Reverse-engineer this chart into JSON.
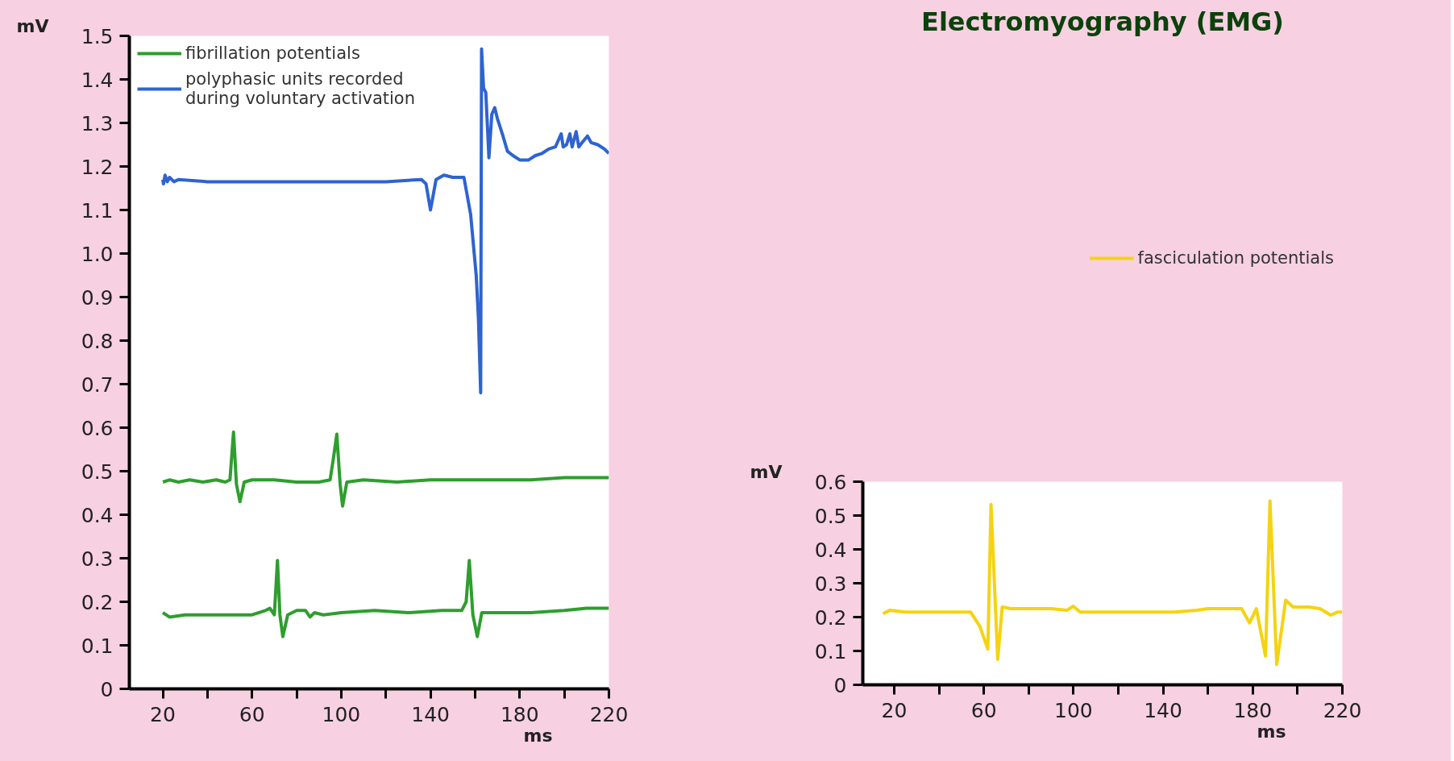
{
  "chart_data": [
    {
      "type": "line",
      "xlabel": "ms",
      "ylabel": "mV",
      "xlim": [
        5,
        220
      ],
      "ylim": [
        0,
        1.5
      ],
      "xticks": [
        20,
        {
          "value": 40,
          "label": null
        },
        60,
        {
          "value": 80,
          "label": null
        },
        100,
        {
          "value": 120,
          "label": null
        },
        140,
        {
          "value": 160,
          "label": null
        },
        180,
        {
          "value": 200,
          "label": null
        },
        220
      ],
      "yticks": [
        0,
        0.1,
        0.2,
        0.3,
        0.4,
        0.5,
        0.6,
        0.7,
        0.8,
        0.9,
        {
          "value": 1,
          "label": "1.0"
        },
        1.1,
        1.2,
        1.3,
        1.4,
        1.5
      ],
      "grid": false,
      "legend": "top left",
      "marker": "none",
      "line_style": "solid",
      "series": [
        {
          "name": "fibrillation potentials",
          "color": "#2e9e2e",
          "x": [
            20,
            23,
            27,
            32,
            38,
            44,
            48,
            50.1,
            51.7,
            53,
            54.6,
            56.5,
            60,
            70,
            80,
            90,
            95,
            96.5,
            98,
            99.5,
            100.6,
            102.5,
            110,
            125,
            140,
            155,
            170,
            185,
            200,
            210,
            220
          ],
          "values": [
            0.475,
            0.48,
            0.475,
            0.48,
            0.475,
            0.48,
            0.475,
            0.48,
            0.59,
            0.47,
            0.43,
            0.475,
            0.48,
            0.48,
            0.475,
            0.475,
            0.48,
            0.53,
            0.585,
            0.47,
            0.42,
            0.475,
            0.48,
            0.475,
            0.48,
            0.48,
            0.48,
            0.48,
            0.485,
            0.485,
            0.485
          ]
        },
        {
          "color": "#2e9e2e",
          "x": [
            20,
            23,
            30,
            40,
            50,
            60,
            66,
            68,
            70,
            71.4,
            72.5,
            73.8,
            76,
            80,
            84,
            86,
            88,
            92,
            100,
            115,
            130,
            145,
            154,
            156,
            157.4,
            159,
            161,
            163,
            170,
            185,
            200,
            210,
            220
          ],
          "values": [
            0.175,
            0.165,
            0.17,
            0.17,
            0.17,
            0.17,
            0.18,
            0.185,
            0.17,
            0.295,
            0.17,
            0.12,
            0.17,
            0.18,
            0.18,
            0.165,
            0.175,
            0.17,
            0.175,
            0.18,
            0.175,
            0.18,
            0.18,
            0.2,
            0.295,
            0.17,
            0.12,
            0.175,
            0.175,
            0.175,
            0.18,
            0.185,
            0.185
          ]
        },
        {
          "name": "polyphasic units recorded during voluntary activation",
          "color": "#2e63d1",
          "x": [
            20,
            20.3,
            21,
            22,
            23,
            25,
            27,
            40,
            60,
            80,
            100,
            120,
            136,
            138,
            140,
            142.5,
            146,
            150,
            155,
            158,
            160.5,
            161.5,
            162.5,
            162.9,
            163.8,
            164.8,
            166.2,
            167.5,
            168.8,
            170,
            172.5,
            174.5,
            177,
            180,
            184,
            187,
            190,
            193,
            196,
            198.6,
            199.5,
            201,
            202.5,
            203.5,
            205.3,
            206.5,
            208,
            210.4,
            212,
            215,
            218,
            220
          ],
          "values": [
            1.17,
            1.16,
            1.18,
            1.165,
            1.175,
            1.165,
            1.17,
            1.165,
            1.165,
            1.165,
            1.165,
            1.165,
            1.17,
            1.16,
            1.1,
            1.17,
            1.18,
            1.175,
            1.175,
            1.09,
            0.95,
            0.85,
            0.68,
            1.47,
            1.38,
            1.37,
            1.22,
            1.32,
            1.335,
            1.31,
            1.27,
            1.235,
            1.225,
            1.215,
            1.215,
            1.225,
            1.23,
            1.24,
            1.245,
            1.275,
            1.245,
            1.25,
            1.275,
            1.245,
            1.28,
            1.245,
            1.255,
            1.27,
            1.255,
            1.25,
            1.24,
            1.23
          ]
        }
      ]
    },
    {
      "type": "line",
      "title": "Electromyography (EMG)",
      "xlabel": "ms",
      "ylabel": "mV",
      "xlim": [
        6,
        220
      ],
      "ylim": [
        0,
        0.6
      ],
      "xticks": [
        20,
        {
          "value": 40,
          "label": null
        },
        60,
        {
          "value": 80,
          "label": null
        },
        100,
        {
          "value": 120,
          "label": null
        },
        140,
        {
          "value": 160,
          "label": null
        },
        180,
        {
          "value": 200,
          "label": null
        },
        220
      ],
      "yticks": [
        0,
        0.1,
        0.2,
        0.3,
        0.4,
        0.5,
        0.6
      ],
      "grid": false,
      "legend": "top",
      "marker": "none",
      "line_style": "solid",
      "series": [
        {
          "name": "fasciculation potentials",
          "color": "#f5d311",
          "x": [
            15,
            18,
            25,
            35,
            45,
            54.1,
            58.2,
            61.8,
            63.2,
            66.2,
            68.2,
            72,
            80,
            90,
            97,
            99.9,
            103,
            115,
            130,
            145,
            155,
            160,
            170,
            175,
            178.6,
            181.6,
            185.7,
            187.7,
            190.7,
            194.7,
            198,
            205,
            210,
            214.8,
            218,
            220
          ],
          "values": [
            0.21,
            0.22,
            0.215,
            0.215,
            0.215,
            0.215,
            0.173,
            0.106,
            0.533,
            0.075,
            0.23,
            0.225,
            0.225,
            0.225,
            0.22,
            0.232,
            0.215,
            0.215,
            0.215,
            0.215,
            0.22,
            0.225,
            0.225,
            0.225,
            0.183,
            0.225,
            0.085,
            0.543,
            0.06,
            0.25,
            0.23,
            0.23,
            0.225,
            0.206,
            0.215,
            0.215
          ]
        }
      ]
    }
  ]
}
